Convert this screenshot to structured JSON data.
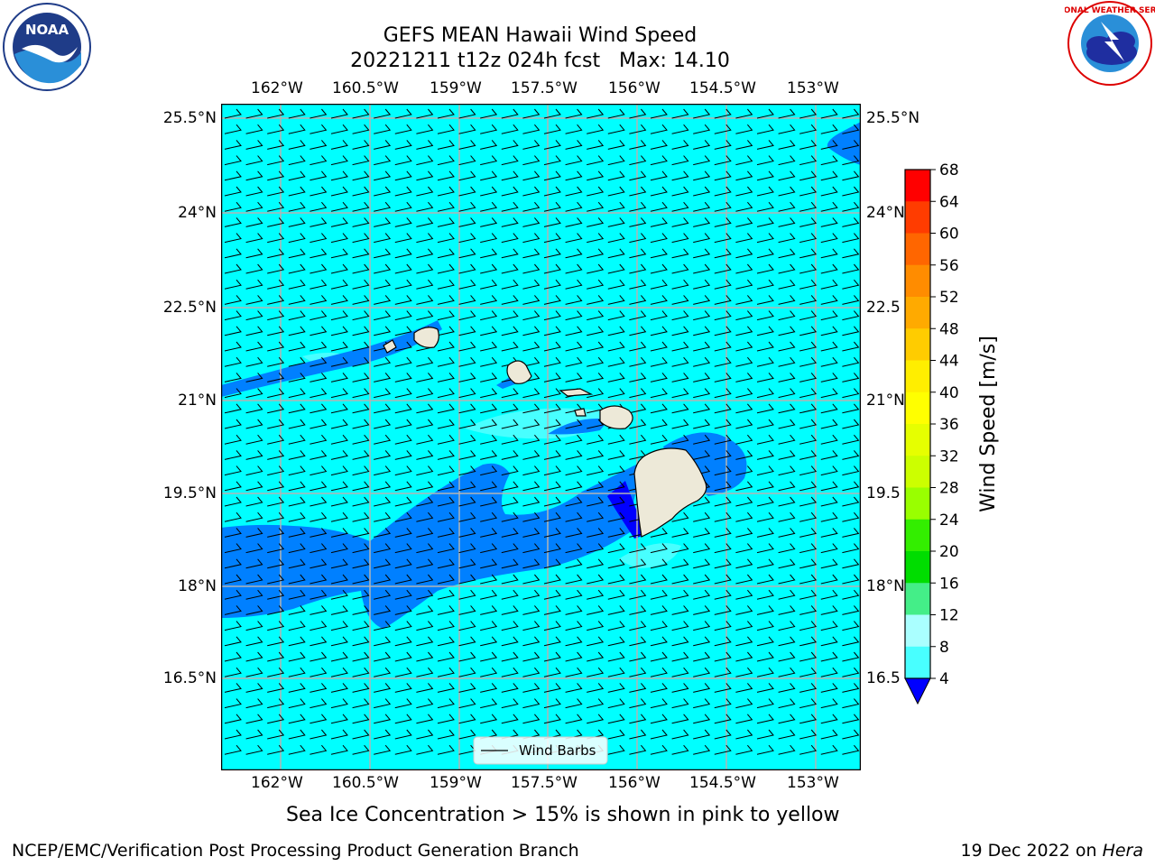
{
  "title": {
    "line1": "GEFS MEAN Hawaii Wind Speed",
    "line2": "20221211 t12z 024h fcst   Max: 14.10"
  },
  "logos": {
    "left": {
      "name": "noaa-logo",
      "text": "NOAA",
      "ring_text": "NATIONAL OCEANIC AND ATMOSPHERIC ADMINISTRATION · U.S. DEPARTMENT OF COMMERCE"
    },
    "right": {
      "name": "nws-logo",
      "ring_text": "NATIONAL WEATHER SERVICE"
    }
  },
  "map": {
    "lon_ticks": [
      "162°W",
      "160.5°W",
      "159°W",
      "157.5°W",
      "156°W",
      "154.5°W",
      "153°W"
    ],
    "lat_ticks": [
      "25.5°N",
      "24°N",
      "22.5°N",
      "21°N",
      "19.5°N",
      "18°N",
      "16.5°N"
    ],
    "lat_ticks_right": [
      "25.5°N",
      "24°N",
      "22.5",
      "21°N",
      "19.5",
      "18°N",
      "16.5"
    ],
    "legend_label": "Wind Barbs",
    "colors": {
      "bg_8_12": "#00ffff",
      "band_4_8": "#0080ff",
      "band_12_16": "#48ffff",
      "band_0_4": "#0000ff",
      "land": "#ede9d8"
    }
  },
  "colorbar": {
    "label": "Wind Speed [m/s]",
    "ticks": [
      "68",
      "64",
      "60",
      "56",
      "52",
      "48",
      "44",
      "40",
      "36",
      "32",
      "28",
      "24",
      "20",
      "16",
      "12",
      "8",
      "4"
    ],
    "colors": [
      "#ff0000",
      "#ff3c00",
      "#ff6600",
      "#ff8c00",
      "#ffaa00",
      "#ffcc00",
      "#ffee00",
      "#ffff00",
      "#e6ff00",
      "#ccff00",
      "#99ff00",
      "#33ee00",
      "#00dd00",
      "#44ee88",
      "#aaffff",
      "#48ffff",
      "#00ffff",
      "#0080ff"
    ],
    "extend_color": "#0000ff"
  },
  "caption": "Sea Ice Concentration > 15% is shown in pink to yellow",
  "footer": {
    "left": "NCEP/EMC/Verification Post Processing Product Generation Branch",
    "date": "19 Dec 2022 on ",
    "machine": "Hera"
  }
}
